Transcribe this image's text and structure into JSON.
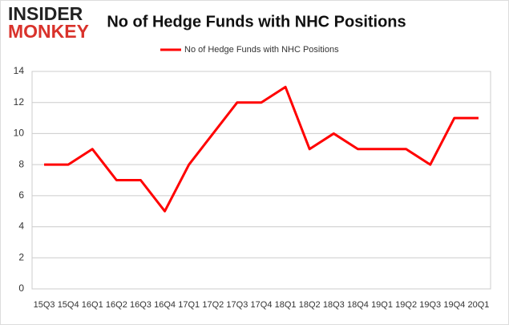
{
  "logo": {
    "line1": "INSIDER",
    "line2": "MONKEY"
  },
  "chart_data": {
    "type": "line",
    "title": "No of Hedge Funds with NHC Positions",
    "categories": [
      "15Q3",
      "15Q4",
      "16Q1",
      "16Q2",
      "16Q3",
      "16Q4",
      "17Q1",
      "17Q2",
      "17Q3",
      "17Q4",
      "18Q1",
      "18Q2",
      "18Q3",
      "18Q4",
      "19Q1",
      "19Q2",
      "19Q3",
      "19Q4",
      "20Q1"
    ],
    "series": [
      {
        "name": "No of Hedge Funds with NHC Positions",
        "color": "#ff0000",
        "values": [
          8,
          8,
          9,
          7,
          7,
          5,
          8,
          10,
          12,
          12,
          13,
          9,
          10,
          9,
          9,
          9,
          8,
          11,
          11
        ]
      }
    ],
    "ylim": [
      0,
      14
    ],
    "yticks": [
      0,
      2,
      4,
      6,
      8,
      10,
      12,
      14
    ],
    "grid": true,
    "legend": "top"
  }
}
